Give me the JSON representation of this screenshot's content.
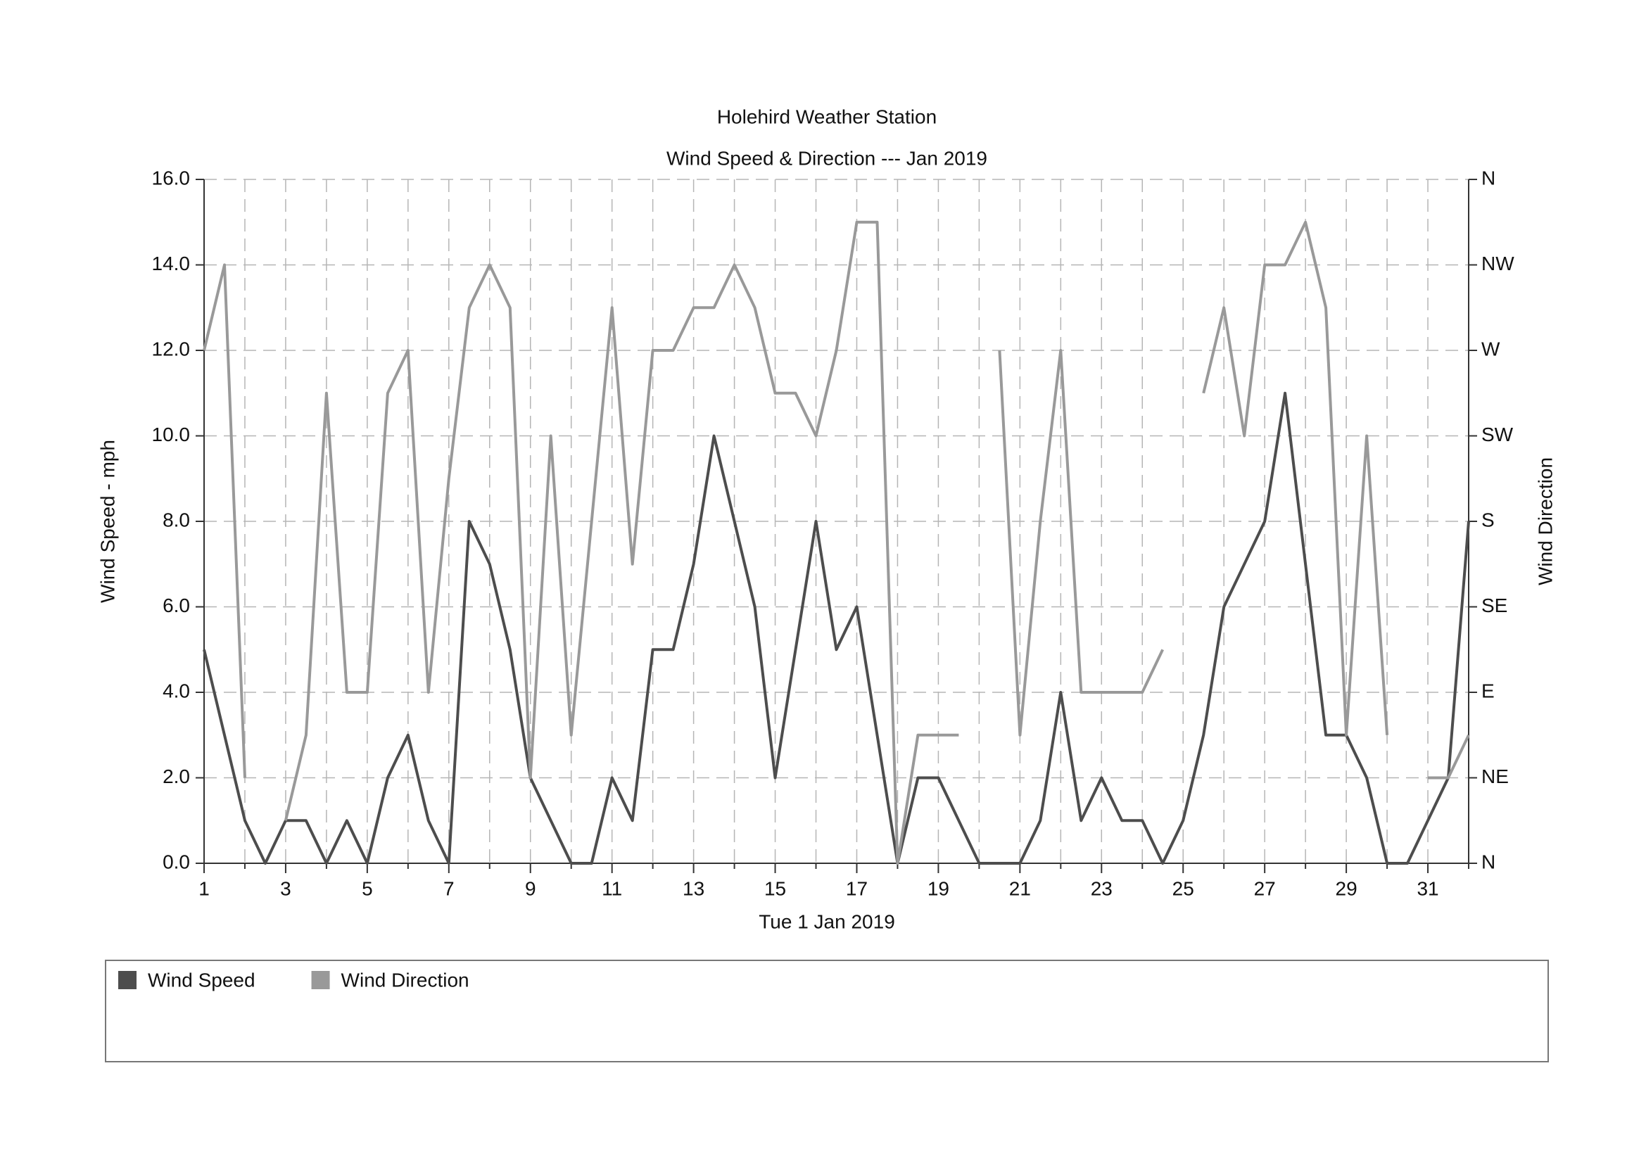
{
  "chart_data": {
    "type": "line",
    "title": "Holehird Weather Station",
    "subtitle": "Wind Speed & Direction --- Jan 2019",
    "x_label": "Tue 1 Jan 2019",
    "y_label": "Wind Speed - mph",
    "y2_label": "Wind Direction",
    "x": [
      1,
      1.5,
      2,
      2.5,
      3,
      3.5,
      4,
      4.5,
      5,
      5.5,
      6,
      6.5,
      7,
      7.5,
      8,
      8.5,
      9,
      9.5,
      10,
      10.5,
      11,
      11.5,
      12,
      12.5,
      13,
      13.5,
      14,
      14.5,
      15,
      15.5,
      16,
      16.5,
      17,
      17.5,
      18,
      18.5,
      19,
      19.5,
      20,
      20.5,
      21,
      21.5,
      22,
      22.5,
      23,
      23.5,
      24,
      24.5,
      25,
      25.5,
      26,
      26.5,
      27,
      27.5,
      28,
      28.5,
      29,
      29.5,
      30,
      30.5,
      31,
      31.5,
      32
    ],
    "series": [
      {
        "name": "Wind Speed",
        "color": "#4d4d4d",
        "values": [
          5,
          3,
          1,
          0,
          1,
          1,
          0,
          1,
          0,
          2,
          3,
          1,
          0,
          8,
          7,
          5,
          2,
          1,
          0,
          0,
          2,
          1,
          5,
          5,
          7,
          10,
          8,
          6,
          2,
          5,
          8,
          5,
          6,
          3,
          0,
          2,
          2,
          1,
          0,
          0,
          0,
          1,
          4,
          1,
          2,
          1,
          1,
          0,
          1,
          3,
          6,
          7,
          8,
          11,
          7,
          3,
          3,
          2,
          0,
          0,
          1,
          2,
          8
        ]
      },
      {
        "name": "Wind Direction",
        "color": "#999999",
        "axis": "y2",
        "values": [
          12,
          14,
          2,
          null,
          1,
          3,
          11,
          4,
          4,
          11,
          12,
          4,
          9,
          13,
          14,
          13,
          2,
          10,
          3,
          8,
          13,
          7,
          12,
          12,
          13,
          13,
          14,
          13,
          11,
          11,
          10,
          12,
          15,
          15,
          0,
          3,
          3,
          3,
          null,
          12,
          3,
          8,
          12,
          4,
          4,
          4,
          4,
          5,
          null,
          11,
          13,
          10,
          14,
          14,
          15,
          13,
          3,
          10,
          3,
          null,
          2,
          2,
          3
        ]
      }
    ],
    "xlim": [
      1,
      32
    ],
    "xticks": [
      1,
      3,
      5,
      7,
      9,
      11,
      13,
      15,
      17,
      19,
      21,
      23,
      25,
      27,
      29,
      31
    ],
    "xminorticks": [
      2,
      4,
      6,
      8,
      10,
      12,
      14,
      16,
      18,
      20,
      22,
      24,
      26,
      28,
      30,
      32
    ],
    "ylim": [
      0,
      16
    ],
    "yticks": [
      {
        "value": 0,
        "label": "0.0"
      },
      {
        "value": 2,
        "label": "2.0"
      },
      {
        "value": 4,
        "label": "4.0"
      },
      {
        "value": 6,
        "label": "6.0"
      },
      {
        "value": 8,
        "label": "8.0"
      },
      {
        "value": 10,
        "label": "10.0"
      },
      {
        "value": 12,
        "label": "12.0"
      },
      {
        "value": 14,
        "label": "14.0"
      },
      {
        "value": 16,
        "label": "16.0"
      }
    ],
    "y2lim": [
      0,
      16
    ],
    "y2ticks": [
      {
        "value": 0,
        "label": "N"
      },
      {
        "value": 2,
        "label": "NE"
      },
      {
        "value": 4,
        "label": "E"
      },
      {
        "value": 6,
        "label": "SE"
      },
      {
        "value": 8,
        "label": "S"
      },
      {
        "value": 10,
        "label": "SW"
      },
      {
        "value": 12,
        "label": "W"
      },
      {
        "value": 14,
        "label": "NW"
      },
      {
        "value": 16,
        "label": "N"
      }
    ],
    "grid": true
  }
}
